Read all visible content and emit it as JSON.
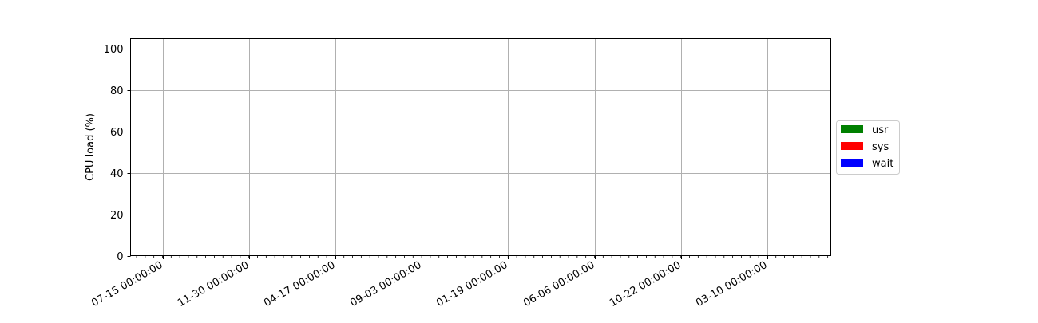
{
  "chart_data": {
    "type": "area",
    "ylabel": "CPU load (%)",
    "xlabel": "",
    "ylim": [
      0,
      105
    ],
    "y_ticks": [
      0,
      20,
      40,
      60,
      80,
      100
    ],
    "x_tick_labels": [
      "07-15 00:00:00",
      "11-30 00:00:00",
      "04-17 00:00:00",
      "09-03 00:00:00",
      "01-19 00:00:00",
      "06-06 00:00:00",
      "10-22 00:00:00",
      "03-10 00:00:00"
    ],
    "minor_ticks_between_labels": 9,
    "grid": true,
    "legend_placement": "center-right-outside",
    "series": [
      {
        "name": "usr",
        "color": "#008000",
        "values": []
      },
      {
        "name": "sys",
        "color": "#ff0000",
        "values": []
      },
      {
        "name": "wait",
        "color": "#0000ff",
        "values": []
      }
    ]
  }
}
